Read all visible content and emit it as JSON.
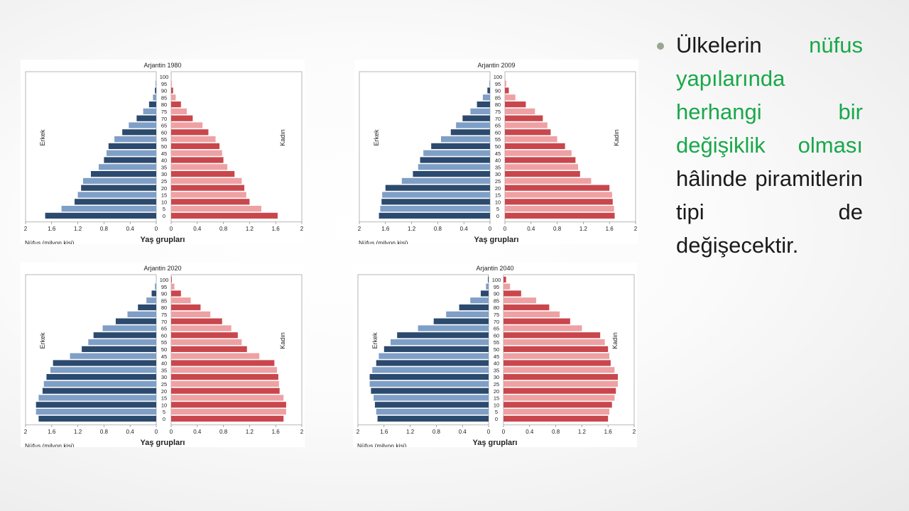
{
  "bullet": {
    "part1": "Ülkelerin",
    "part2": "nüfus yapılarında herhangi bir değişiklik olması",
    "part3": "hâlinde piramitlerin tipi de değişecektir.",
    "highlight_color": "#19a84a"
  },
  "colors": {
    "male_dark": "#2c4a6e",
    "male_light": "#7f9fc7",
    "female_dark": "#c9474c",
    "female_light": "#eea1a3"
  },
  "chart_data": [
    {
      "type": "bar",
      "title": "Arjantin 1980",
      "xlabel": "Yaş grupları",
      "unit_label": "Nüfus (milyon kişi)",
      "left_label": "Erkek",
      "right_label": "Kadın",
      "age_groups": [
        "0",
        "5",
        "10",
        "15",
        "20",
        "25",
        "30",
        "35",
        "40",
        "45",
        "50",
        "55",
        "60",
        "65",
        "70",
        "75",
        "80",
        "85",
        "90",
        "95",
        "100"
      ],
      "x_ticks": [
        "2",
        "1.6",
        "1.2",
        "0.8",
        "0.4",
        "0",
        "0",
        "0.4",
        "0.8",
        "1.2",
        "1.6",
        "2"
      ],
      "xlim": [
        0,
        2
      ],
      "series": [
        {
          "name": "Erkek",
          "values": [
            1.7,
            1.45,
            1.25,
            1.2,
            1.15,
            1.12,
            1.0,
            0.88,
            0.8,
            0.76,
            0.73,
            0.64,
            0.52,
            0.42,
            0.3,
            0.2,
            0.11,
            0.05,
            0.02,
            0.01,
            0.0
          ]
        },
        {
          "name": "Kadın",
          "values": [
            1.63,
            1.38,
            1.2,
            1.15,
            1.12,
            1.08,
            0.97,
            0.86,
            0.8,
            0.78,
            0.74,
            0.68,
            0.57,
            0.48,
            0.33,
            0.24,
            0.15,
            0.07,
            0.03,
            0.01,
            0.0
          ]
        }
      ]
    },
    {
      "type": "bar",
      "title": "Arjantin 2009",
      "xlabel": "Yaş grupları",
      "unit_label": "Nüfus (milyon kişi)",
      "left_label": "Erkek",
      "right_label": "Kadın",
      "age_groups": [
        "0",
        "5",
        "10",
        "15",
        "20",
        "25",
        "30",
        "35",
        "40",
        "45",
        "50",
        "55",
        "60",
        "65",
        "70",
        "75",
        "80",
        "85",
        "90",
        "95",
        "100"
      ],
      "x_ticks": [
        "2",
        "1.6",
        "1.2",
        "0.8",
        "0.4",
        "0",
        "0",
        "0.4",
        "0.8",
        "1.2",
        "1.6",
        "2"
      ],
      "xlim": [
        0,
        2
      ],
      "series": [
        {
          "name": "Erkek",
          "values": [
            1.7,
            1.68,
            1.66,
            1.65,
            1.6,
            1.35,
            1.18,
            1.1,
            1.07,
            1.02,
            0.9,
            0.75,
            0.6,
            0.52,
            0.42,
            0.3,
            0.2,
            0.11,
            0.04,
            0.01,
            0.0
          ]
        },
        {
          "name": "Kadın",
          "values": [
            1.68,
            1.67,
            1.65,
            1.64,
            1.6,
            1.32,
            1.15,
            1.12,
            1.08,
            1.02,
            0.92,
            0.8,
            0.7,
            0.65,
            0.58,
            0.46,
            0.32,
            0.16,
            0.06,
            0.02,
            0.0
          ]
        }
      ]
    },
    {
      "type": "bar",
      "title": "Arjantin 2020",
      "xlabel": "Yaş grupları",
      "unit_label": "Nüfus (milyon kişi)",
      "left_label": "Erkek",
      "right_label": "Kadın",
      "age_groups": [
        "0",
        "5",
        "10",
        "15",
        "20",
        "25",
        "30",
        "35",
        "40",
        "45",
        "50",
        "55",
        "60",
        "65",
        "70",
        "75",
        "80",
        "85",
        "90",
        "95",
        "100"
      ],
      "x_ticks": [
        "2",
        "1.6",
        "1.2",
        "0.8",
        "0.4",
        "0",
        "0",
        "0.4",
        "0.8",
        "1.2",
        "1.6",
        "2"
      ],
      "xlim": [
        0,
        2
      ],
      "series": [
        {
          "name": "Erkek",
          "values": [
            1.8,
            1.84,
            1.84,
            1.8,
            1.74,
            1.72,
            1.68,
            1.62,
            1.58,
            1.32,
            1.14,
            1.04,
            0.96,
            0.82,
            0.62,
            0.44,
            0.28,
            0.15,
            0.07,
            0.02,
            0.0
          ]
        },
        {
          "name": "Kadın",
          "values": [
            1.72,
            1.76,
            1.76,
            1.72,
            1.66,
            1.65,
            1.64,
            1.62,
            1.58,
            1.35,
            1.16,
            1.08,
            1.02,
            0.92,
            0.78,
            0.6,
            0.45,
            0.3,
            0.15,
            0.05,
            0.01
          ]
        }
      ]
    },
    {
      "type": "bar",
      "title": "Arjantin 2040",
      "xlabel": "Yaş grupları",
      "unit_label": "Nüfus (milyon kişi)",
      "left_label": "Erkek",
      "right_label": "Kadın",
      "age_groups": [
        "0",
        "5",
        "10",
        "15",
        "20",
        "25",
        "30",
        "35",
        "40",
        "45",
        "50",
        "55",
        "60",
        "65",
        "70",
        "75",
        "80",
        "85",
        "90",
        "95",
        "100"
      ],
      "x_ticks": [
        "2",
        "1.6",
        "1.2",
        "0.8",
        "0.4",
        "0",
        "0",
        "0.4",
        "0.8",
        "1.2",
        "1.6",
        "2"
      ],
      "xlim": [
        0,
        2
      ],
      "series": [
        {
          "name": "Erkek",
          "values": [
            1.7,
            1.72,
            1.74,
            1.76,
            1.8,
            1.82,
            1.82,
            1.78,
            1.72,
            1.68,
            1.6,
            1.5,
            1.4,
            1.08,
            0.84,
            0.65,
            0.45,
            0.28,
            0.12,
            0.04,
            0.01
          ]
        },
        {
          "name": "Kadın",
          "values": [
            1.6,
            1.62,
            1.66,
            1.7,
            1.72,
            1.75,
            1.75,
            1.7,
            1.64,
            1.62,
            1.6,
            1.55,
            1.48,
            1.2,
            1.02,
            0.86,
            0.7,
            0.5,
            0.27,
            0.1,
            0.04
          ]
        }
      ]
    }
  ]
}
